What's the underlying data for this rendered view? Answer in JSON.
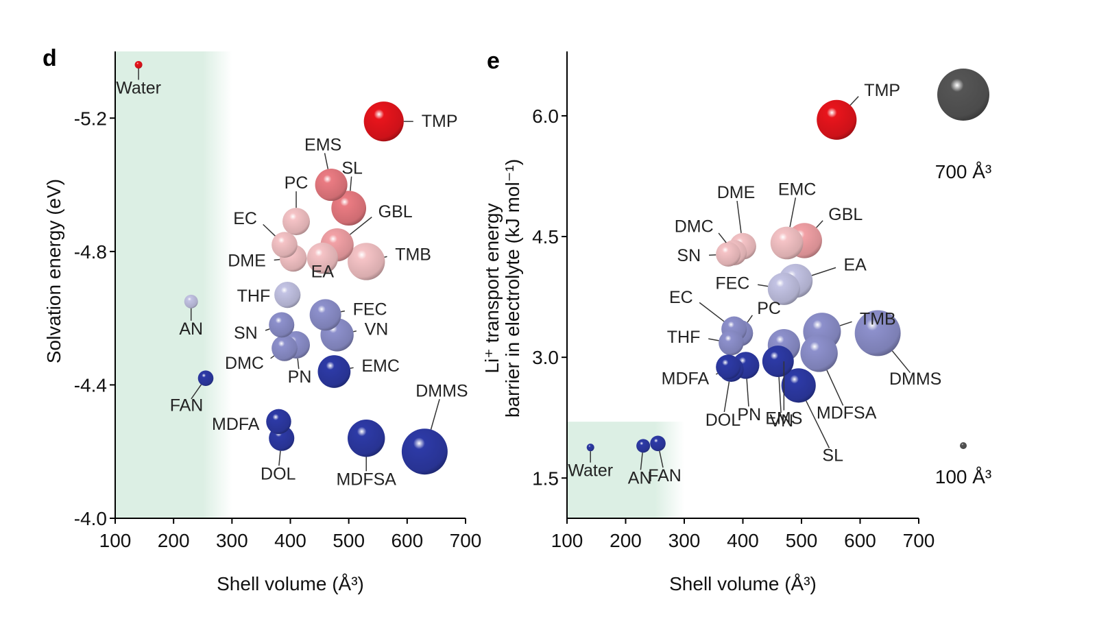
{
  "colors": {
    "water": "#e8141c",
    "tmp": "#e8141c",
    "light_red": "#f5c3c6",
    "pink": "#f2a1a6",
    "salmon": "#ea7b82",
    "light_purple": "#c3c3e4",
    "mid_purple": "#8d90cc",
    "dark_blue": "#2d3aa6",
    "legend_gray": "#555555",
    "shade": "#dcefe4"
  },
  "chart_data": [
    {
      "panel": "d",
      "type": "scatter",
      "xlabel": "Shell volume (Å³)",
      "ylabel": "Solvation energy (eV)",
      "xlim": [
        100,
        700
      ],
      "ylim": [
        -4.0,
        -5.4
      ],
      "y_inverted": true,
      "xticks": [
        "100",
        "200",
        "300",
        "400",
        "500",
        "600",
        "700"
      ],
      "yticks": [
        "-5.2",
        "-4.8",
        "-4.4",
        "-4.0"
      ],
      "ytick_values": [
        -5.2,
        -4.8,
        -4.4,
        -4.0
      ],
      "shaded_x_range": [
        100,
        300
      ],
      "points": [
        {
          "label": "Water",
          "x": 140,
          "y": -5.36,
          "color": "water"
        },
        {
          "label": "TMP",
          "x": 560,
          "y": -5.19,
          "color": "tmp"
        },
        {
          "label": "EMS",
          "x": 470,
          "y": -5.0,
          "color": "salmon"
        },
        {
          "label": "SL",
          "x": 500,
          "y": -4.93,
          "color": "salmon"
        },
        {
          "label": "GBL",
          "x": 480,
          "y": -4.82,
          "color": "pink"
        },
        {
          "label": "TMB",
          "x": 530,
          "y": -4.77,
          "color": "light_red"
        },
        {
          "label": "EA",
          "x": 455,
          "y": -4.78,
          "color": "light_red"
        },
        {
          "label": "PC",
          "x": 410,
          "y": -4.89,
          "color": "light_red"
        },
        {
          "label": "EC",
          "x": 390,
          "y": -4.82,
          "color": "light_red"
        },
        {
          "label": "DME",
          "x": 405,
          "y": -4.78,
          "color": "light_red"
        },
        {
          "label": "THF",
          "x": 395,
          "y": -4.67,
          "color": "light_purple"
        },
        {
          "label": "FEC",
          "x": 460,
          "y": -4.61,
          "color": "mid_purple"
        },
        {
          "label": "SN",
          "x": 385,
          "y": -4.58,
          "color": "mid_purple"
        },
        {
          "label": "VN",
          "x": 480,
          "y": -4.55,
          "color": "mid_purple"
        },
        {
          "label": "DMC",
          "x": 390,
          "y": -4.51,
          "color": "mid_purple"
        },
        {
          "label": "PN",
          "x": 410,
          "y": -4.52,
          "color": "mid_purple"
        },
        {
          "label": "EMC",
          "x": 475,
          "y": -4.44,
          "color": "dark_blue"
        },
        {
          "label": "AN",
          "x": 230,
          "y": -4.65,
          "color": "light_purple"
        },
        {
          "label": "FAN",
          "x": 255,
          "y": -4.42,
          "color": "dark_blue"
        },
        {
          "label": "MDFA",
          "x": 380,
          "y": -4.29,
          "color": "dark_blue"
        },
        {
          "label": "DOL",
          "x": 385,
          "y": -4.24,
          "color": "dark_blue"
        },
        {
          "label": "MDFSA",
          "x": 530,
          "y": -4.24,
          "color": "dark_blue"
        },
        {
          "label": "DMMS",
          "x": 630,
          "y": -4.2,
          "color": "dark_blue"
        }
      ]
    },
    {
      "panel": "e",
      "type": "scatter",
      "xlabel": "Shell volume (Å³)",
      "ylabel_line1": "Li⁺ transport energy",
      "ylabel_line2": "barrier in electrolyte (kJ mol⁻¹)",
      "xlim": [
        100,
        700
      ],
      "ylim": [
        1.0,
        6.8
      ],
      "xticks": [
        "100",
        "200",
        "300",
        "400",
        "500",
        "600",
        "700"
      ],
      "yticks": [
        "1.5",
        "3.0",
        "4.5",
        "6.0"
      ],
      "ytick_values": [
        1.5,
        3.0,
        4.5,
        6.0
      ],
      "shaded_x_range": [
        100,
        300
      ],
      "shaded_y_range": [
        1.0,
        2.2
      ],
      "points": [
        {
          "label": "TMP",
          "x": 560,
          "y": 5.95,
          "color": "tmp"
        },
        {
          "label": "DME",
          "x": 400,
          "y": 4.38,
          "color": "light_red"
        },
        {
          "label": "DMC",
          "x": 385,
          "y": 4.3,
          "color": "light_red"
        },
        {
          "label": "SN",
          "x": 375,
          "y": 4.28,
          "color": "light_red"
        },
        {
          "label": "EMC",
          "x": 475,
          "y": 4.42,
          "color": "light_red"
        },
        {
          "label": "GBL",
          "x": 505,
          "y": 4.45,
          "color": "pink"
        },
        {
          "label": "EA",
          "x": 490,
          "y": 3.95,
          "color": "light_purple"
        },
        {
          "label": "FEC",
          "x": 470,
          "y": 3.85,
          "color": "light_purple"
        },
        {
          "label": "TMB",
          "x": 535,
          "y": 3.32,
          "color": "mid_purple"
        },
        {
          "label": "EC",
          "x": 385,
          "y": 3.35,
          "color": "mid_purple"
        },
        {
          "label": "PC",
          "x": 395,
          "y": 3.3,
          "color": "mid_purple"
        },
        {
          "label": "THF",
          "x": 380,
          "y": 3.18,
          "color": "mid_purple"
        },
        {
          "label": "DMMS",
          "x": 630,
          "y": 3.3,
          "color": "mid_purple"
        },
        {
          "label": "MDFSA",
          "x": 530,
          "y": 3.05,
          "color": "mid_purple"
        },
        {
          "label": "EMS",
          "x": 470,
          "y": 3.15,
          "color": "mid_purple"
        },
        {
          "label": "MDFA",
          "x": 375,
          "y": 2.88,
          "color": "dark_blue"
        },
        {
          "label": "PN",
          "x": 405,
          "y": 2.9,
          "color": "dark_blue"
        },
        {
          "label": "DOL",
          "x": 380,
          "y": 2.85,
          "color": "dark_blue"
        },
        {
          "label": "VN",
          "x": 460,
          "y": 2.95,
          "color": "dark_blue"
        },
        {
          "label": "SL",
          "x": 495,
          "y": 2.65,
          "color": "dark_blue"
        },
        {
          "label": "Water",
          "x": 140,
          "y": 1.88,
          "color": "dark_blue"
        },
        {
          "label": "AN",
          "x": 230,
          "y": 1.9,
          "color": "dark_blue"
        },
        {
          "label": "FAN",
          "x": 255,
          "y": 1.93,
          "color": "dark_blue"
        }
      ],
      "size_legend": [
        {
          "label": "700 Å³",
          "volume": 700
        },
        {
          "label": "100 Å³",
          "volume": 100
        }
      ]
    }
  ]
}
